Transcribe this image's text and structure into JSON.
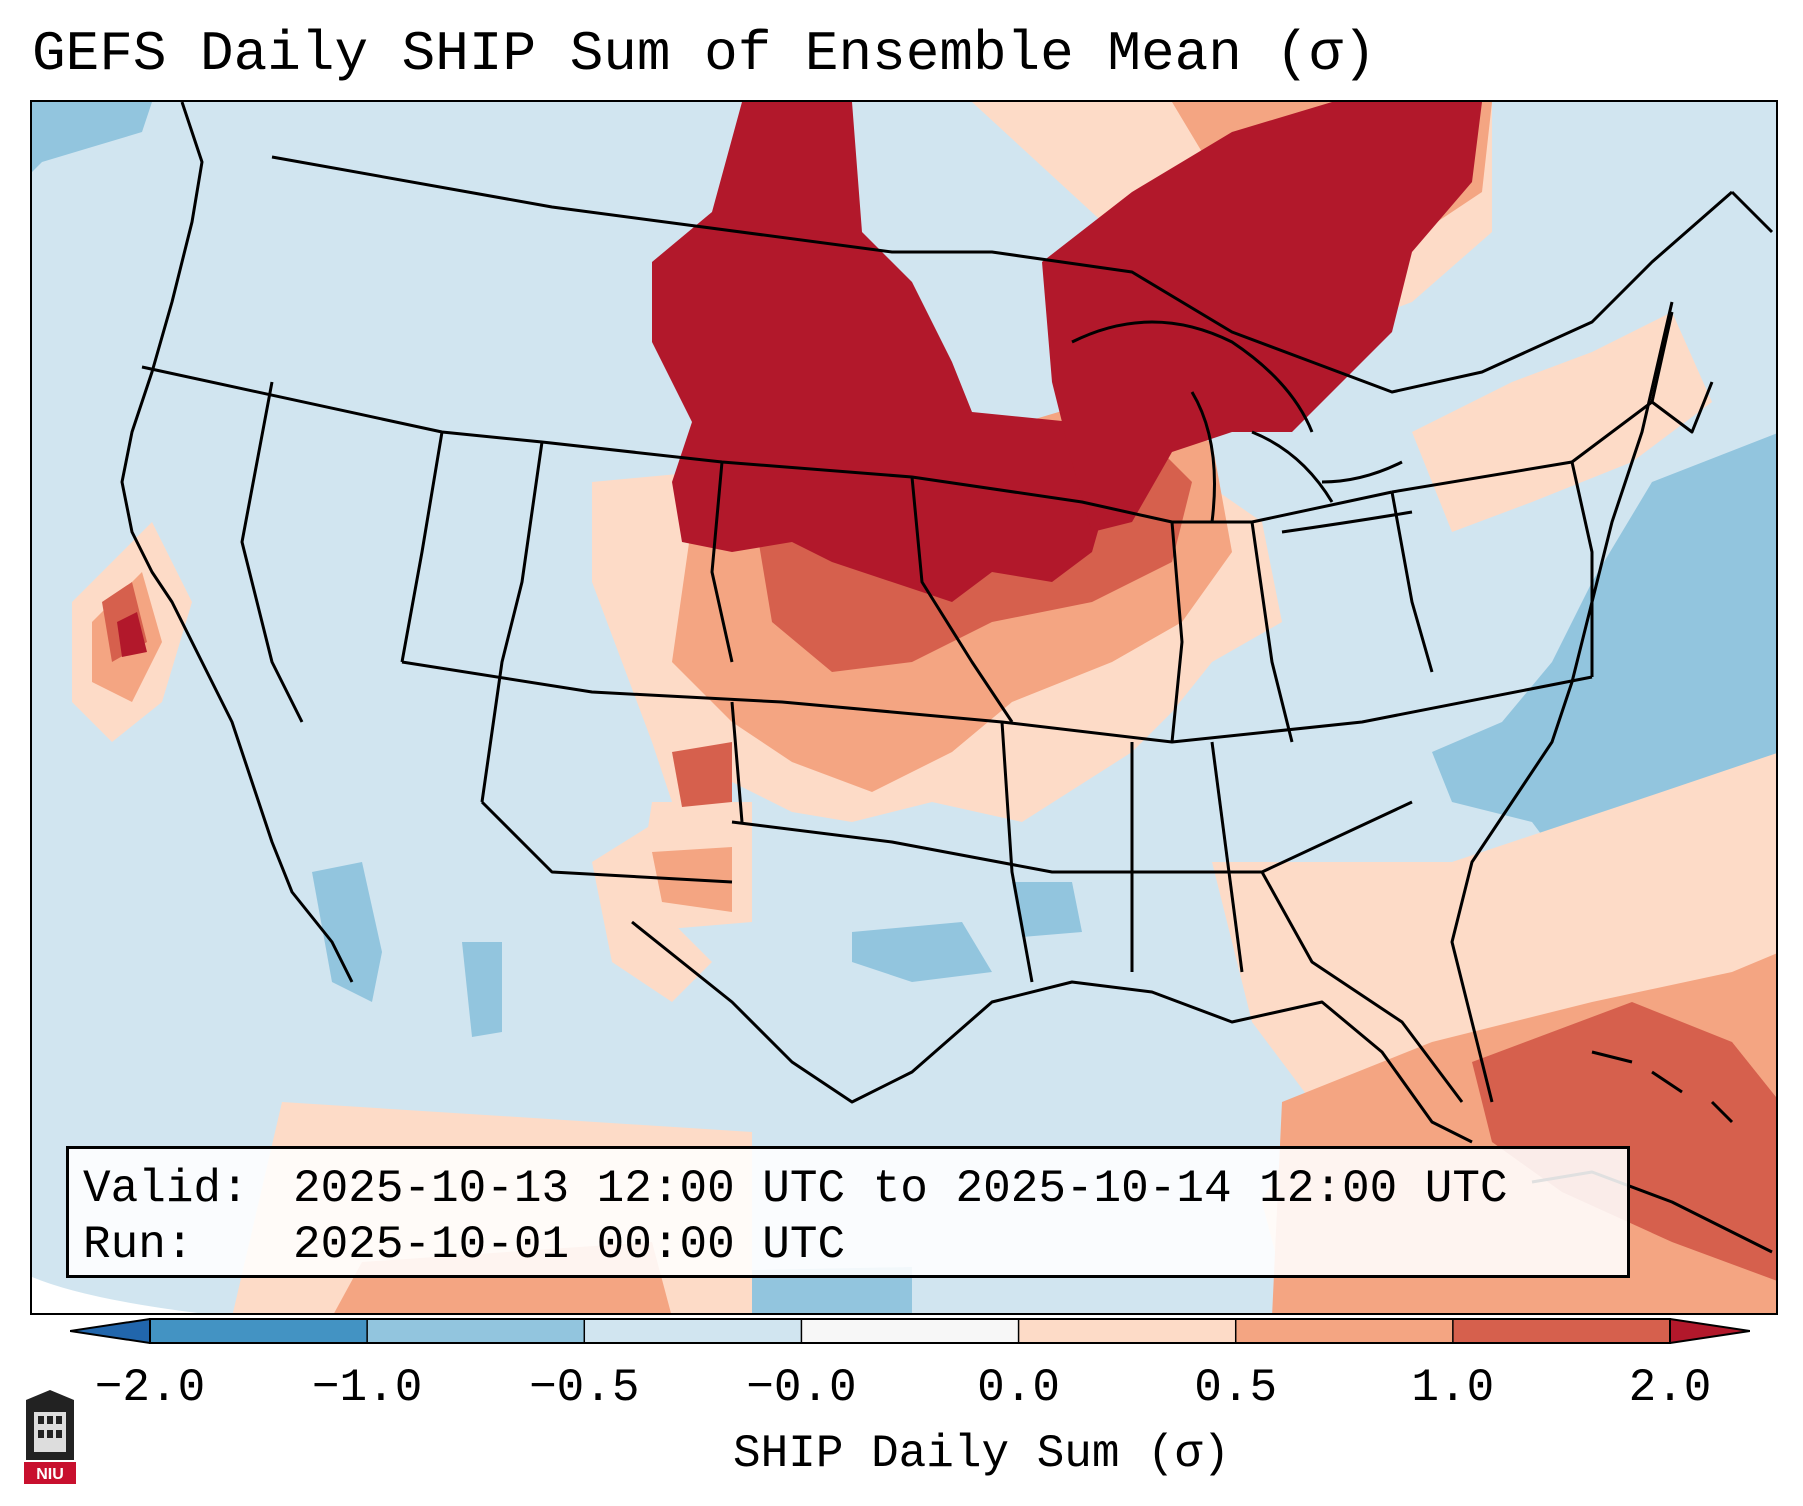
{
  "title": "GEFS Daily SHIP Sum of Ensemble Mean (σ)",
  "info": {
    "valid_label": "Valid:",
    "valid_value": "2025-10-13 12:00 UTC to 2025-10-14 12:00 UTC",
    "run_label": "Run:",
    "run_value": "2025-10-01 00:00 UTC"
  },
  "colorbar": {
    "title": "SHIP Daily Sum (σ)",
    "ticks": [
      "−2.0",
      "−1.0",
      "−0.5",
      "−0.0",
      "0.0",
      "0.5",
      "1.0",
      "2.0"
    ],
    "colors": [
      "#4393c3",
      "#92c5de",
      "#d1e5f0",
      "#f7f7f7",
      "#fddbc7",
      "#f4a582",
      "#d6604d",
      "#b2182b"
    ],
    "extend": "both"
  },
  "map": {
    "region": "Contiguous United States",
    "field": "SHIP daily sum anomaly",
    "colors": {
      "very_high": "#b2182b",
      "high": "#d6604d",
      "moderate": "#f4a582",
      "slight": "#fddbc7",
      "neutral": "#d1e5f0",
      "low": "#92c5de",
      "very_low": "#4393c3"
    }
  },
  "logo": {
    "text": "NIU",
    "icon": "niu-logo-icon"
  }
}
